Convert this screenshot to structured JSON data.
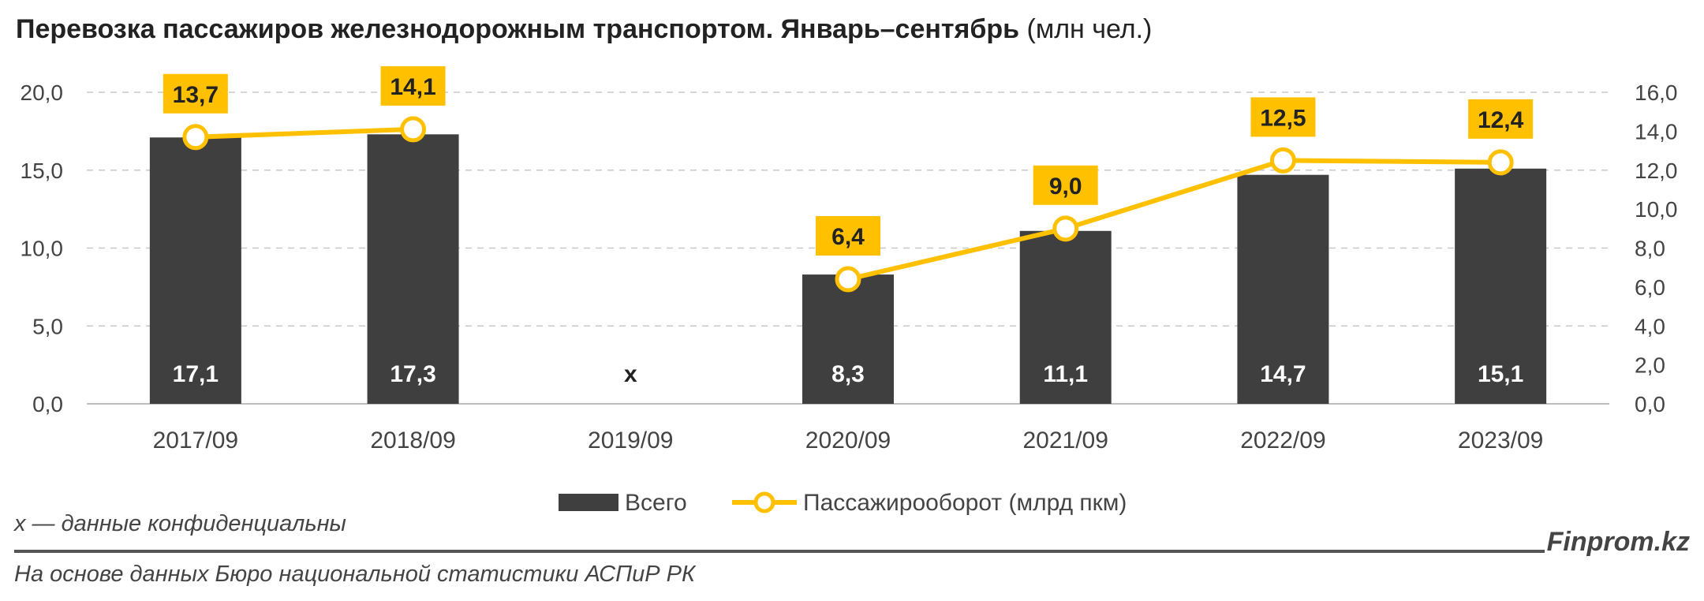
{
  "title": {
    "main": "Перевозка пассажиров железнодорожным транспортом. Январь–сентябрь",
    "unit": "(млн чел.)"
  },
  "footnote": "x — данные конфиденциальны",
  "source": "На основе данных Бюро национальной статистики АСПиР РК",
  "brand": "Finprom.kz",
  "chart_data": {
    "type": "bar",
    "categories": [
      "2017/09",
      "2018/09",
      "2019/09",
      "2020/09",
      "2021/09",
      "2022/09",
      "2023/09"
    ],
    "series": [
      {
        "name": "Всего",
        "type": "bar",
        "axis": "left",
        "values": [
          17.1,
          17.3,
          null,
          8.3,
          11.1,
          14.7,
          15.1
        ],
        "labels": [
          "17,1",
          "17,3",
          "x",
          "8,3",
          "11,1",
          "14,7",
          "15,1"
        ]
      },
      {
        "name": "Пассажирооборот (млрд пкм)",
        "type": "line",
        "axis": "right",
        "values": [
          13.7,
          14.1,
          null,
          6.4,
          9.0,
          12.5,
          12.4
        ],
        "labels": [
          "13,7",
          "14,1",
          "",
          "6,4",
          "9,0",
          "12,5",
          "12,4"
        ]
      }
    ],
    "y_left": {
      "ylim": [
        0,
        20
      ],
      "ticks": [
        "0,0",
        "5,0",
        "10,0",
        "15,0",
        "20,0"
      ],
      "tick_values": [
        0,
        5,
        10,
        15,
        20
      ]
    },
    "y_right": {
      "ylim": [
        0,
        16
      ],
      "ticks": [
        "0,0",
        "2,0",
        "4,0",
        "6,0",
        "8,0",
        "10,0",
        "12,0",
        "14,0",
        "16,0"
      ],
      "tick_values": [
        0,
        2,
        4,
        6,
        8,
        10,
        12,
        14,
        16
      ]
    },
    "grid": true,
    "legend": "bottom",
    "colors": {
      "bar": "#3f3f3f",
      "line": "#ffc000",
      "label_bg": "#ffc000",
      "grid": "#c8c8c8",
      "axis": "#bfbfbf"
    }
  }
}
